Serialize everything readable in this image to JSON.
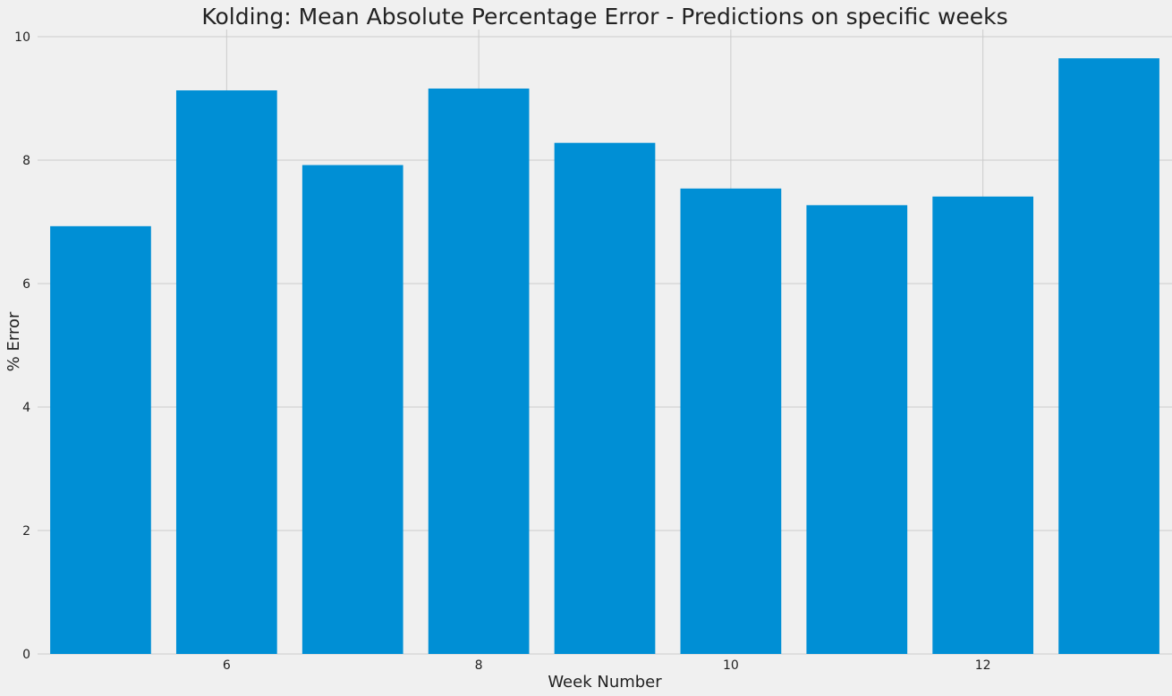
{
  "chart_data": {
    "type": "bar",
    "title": "Kolding: Mean Absolute Percentage Error - Predictions on specific weeks",
    "xlabel": "Week Number",
    "ylabel": "% Error",
    "x": [
      5,
      6,
      7,
      8,
      9,
      10,
      11,
      12,
      13
    ],
    "values": [
      6.93,
      9.13,
      7.92,
      9.16,
      8.28,
      7.54,
      7.27,
      7.41,
      9.65
    ],
    "xlim": [
      4.5,
      13.5
    ],
    "ylim": [
      0,
      10
    ],
    "x_ticks": [
      6,
      8,
      10,
      12
    ],
    "y_ticks": [
      0,
      2,
      4,
      6,
      8,
      10
    ],
    "grid": true,
    "colors": {
      "bar": "#008fd5",
      "background": "#f0f0f0",
      "grid": "#cbcbcb",
      "text": "#222222"
    }
  }
}
